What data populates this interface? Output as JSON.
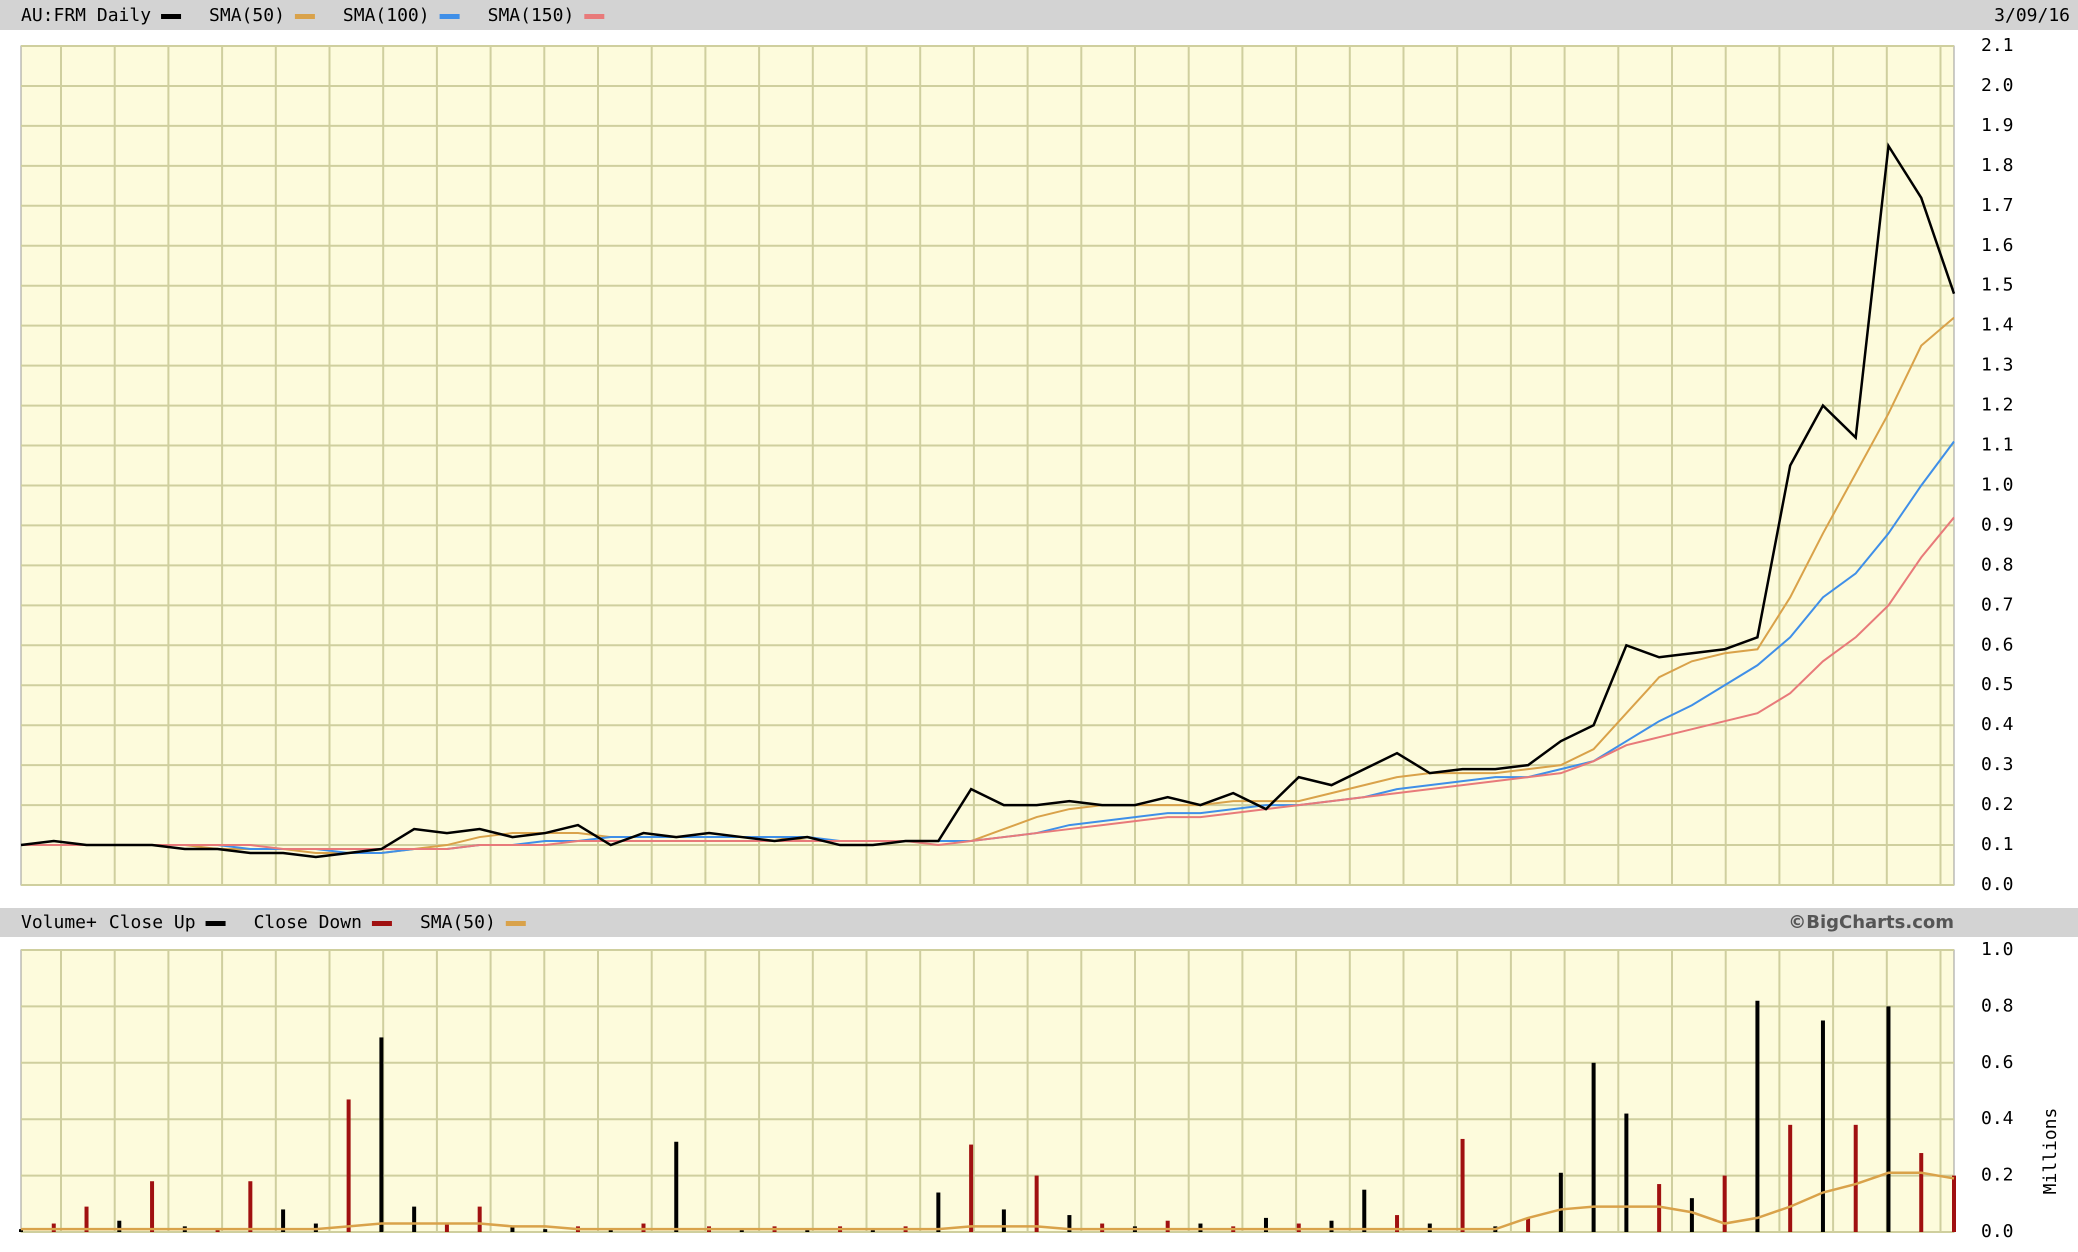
{
  "chart_data": [
    {
      "type": "line",
      "date": "3/09/16",
      "ylim": [
        0,
        2.1
      ],
      "yticks": [
        {
          "value": 0,
          "label": "0.0"
        },
        0.1,
        0.2,
        0.3,
        0.4,
        0.5,
        0.6,
        0.7,
        0.8,
        0.9,
        {
          "value": 1,
          "label": "1.0"
        },
        1.1,
        1.2,
        1.3,
        1.4,
        1.5,
        1.6,
        1.7,
        1.8,
        1.9,
        {
          "value": 2,
          "label": "2.0"
        },
        2.1
      ],
      "grid": true,
      "series": [
        {
          "name": "AU:FRM Daily",
          "color": "#000000",
          "values": [
            0.1,
            0.11,
            0.1,
            0.1,
            0.1,
            0.09,
            0.09,
            0.08,
            0.08,
            0.07,
            0.08,
            0.09,
            0.14,
            0.13,
            0.14,
            0.12,
            0.13,
            0.15,
            0.1,
            0.13,
            0.12,
            0.13,
            0.12,
            0.11,
            0.12,
            0.1,
            0.1,
            0.11,
            0.11,
            0.24,
            0.2,
            0.2,
            0.21,
            0.2,
            0.2,
            0.22,
            0.2,
            0.23,
            0.19,
            0.27,
            0.25,
            0.29,
            0.33,
            0.28,
            0.29,
            0.29,
            0.3,
            0.36,
            0.4,
            0.6,
            0.57,
            0.58,
            0.59,
            0.62,
            1.05,
            1.2,
            1.12,
            1.85,
            1.72,
            1.48
          ]
        },
        {
          "name": "SMA(50)",
          "color": "#d9a24a",
          "values": [
            0.1,
            0.1,
            0.1,
            0.1,
            0.1,
            0.1,
            0.09,
            0.09,
            0.09,
            0.08,
            0.08,
            0.08,
            0.09,
            0.1,
            0.12,
            0.13,
            0.13,
            0.13,
            0.12,
            0.12,
            0.12,
            0.12,
            0.12,
            0.12,
            0.11,
            0.11,
            0.11,
            0.11,
            0.11,
            0.11,
            0.14,
            0.17,
            0.19,
            0.2,
            0.2,
            0.2,
            0.2,
            0.21,
            0.21,
            0.21,
            0.23,
            0.25,
            0.27,
            0.28,
            0.28,
            0.28,
            0.29,
            0.3,
            0.34,
            0.43,
            0.52,
            0.56,
            0.58,
            0.59,
            0.72,
            0.88,
            1.03,
            1.18,
            1.35,
            1.42
          ]
        },
        {
          "name": "SMA(100)",
          "color": "#3f8fe8",
          "values": [
            0.1,
            0.1,
            0.1,
            0.1,
            0.1,
            0.1,
            0.1,
            0.09,
            0.09,
            0.09,
            0.08,
            0.08,
            0.09,
            0.09,
            0.1,
            0.1,
            0.11,
            0.11,
            0.12,
            0.12,
            0.12,
            0.12,
            0.12,
            0.12,
            0.12,
            0.11,
            0.11,
            0.11,
            0.11,
            0.11,
            0.12,
            0.13,
            0.15,
            0.16,
            0.17,
            0.18,
            0.18,
            0.19,
            0.2,
            0.2,
            0.21,
            0.22,
            0.24,
            0.25,
            0.26,
            0.27,
            0.27,
            0.29,
            0.31,
            0.36,
            0.41,
            0.45,
            0.5,
            0.55,
            0.62,
            0.72,
            0.78,
            0.88,
            1.0,
            1.11
          ]
        },
        {
          "name": "SMA(150)",
          "color": "#e87a7a",
          "values": [
            0.1,
            0.1,
            0.1,
            0.1,
            0.1,
            0.1,
            0.1,
            0.1,
            0.09,
            0.09,
            0.09,
            0.09,
            0.09,
            0.09,
            0.1,
            0.1,
            0.1,
            0.11,
            0.11,
            0.11,
            0.11,
            0.11,
            0.11,
            0.11,
            0.11,
            0.11,
            0.11,
            0.11,
            0.1,
            0.11,
            0.12,
            0.13,
            0.14,
            0.15,
            0.16,
            0.17,
            0.17,
            0.18,
            0.19,
            0.2,
            0.21,
            0.22,
            0.23,
            0.24,
            0.25,
            0.26,
            0.27,
            0.28,
            0.31,
            0.35,
            0.37,
            0.39,
            0.41,
            0.43,
            0.48,
            0.56,
            0.62,
            0.7,
            0.82,
            0.92
          ]
        }
      ]
    },
    {
      "type": "bar",
      "title": "Volume+",
      "source": "©BigCharts.com",
      "y_label": "Millions",
      "ylim": [
        0,
        1
      ],
      "yticks": [
        {
          "value": 0,
          "label": "0.0"
        },
        0.2,
        0.4,
        0.6,
        0.8,
        {
          "value": 1,
          "label": "1.0"
        }
      ],
      "grid": true,
      "series": [
        {
          "name": "Close Up",
          "color": "#000000",
          "values": [
            0.01,
            null,
            null,
            0.04,
            null,
            0.02,
            null,
            null,
            0.08,
            0.03,
            null,
            0.69,
            0.09,
            null,
            null,
            0.02,
            0.01,
            null,
            0.01,
            null,
            0.32,
            null,
            0.01,
            null,
            0.01,
            null,
            0.01,
            null,
            0.14,
            null,
            0.08,
            null,
            0.06,
            null,
            0.02,
            null,
            0.03,
            null,
            0.05,
            null,
            0.04,
            0.15,
            null,
            0.03,
            null,
            0.02,
            null,
            0.21,
            0.6,
            0.42,
            null,
            0.12,
            null,
            0.82,
            null,
            0.75,
            null,
            0.8,
            null,
            null
          ]
        },
        {
          "name": "Close Down",
          "color": "#a01010",
          "values": [
            null,
            0.03,
            0.09,
            null,
            0.18,
            null,
            0.01,
            0.18,
            null,
            null,
            0.47,
            null,
            null,
            0.03,
            0.09,
            null,
            null,
            0.02,
            null,
            0.03,
            null,
            0.02,
            null,
            0.02,
            null,
            0.02,
            null,
            0.02,
            null,
            0.31,
            null,
            0.2,
            null,
            0.03,
            null,
            0.04,
            null,
            0.02,
            null,
            0.03,
            null,
            null,
            0.06,
            null,
            0.33,
            null,
            0.05,
            null,
            null,
            null,
            0.17,
            null,
            0.2,
            null,
            0.38,
            null,
            0.38,
            null,
            0.28,
            0.2
          ]
        },
        {
          "name": "SMA(50)",
          "type": "line",
          "color": "#d9a24a",
          "values": [
            0.01,
            0.01,
            0.01,
            0.01,
            0.01,
            0.01,
            0.01,
            0.01,
            0.01,
            0.01,
            0.02,
            0.03,
            0.03,
            0.03,
            0.03,
            0.02,
            0.02,
            0.01,
            0.01,
            0.01,
            0.01,
            0.01,
            0.01,
            0.01,
            0.01,
            0.01,
            0.01,
            0.01,
            0.01,
            0.02,
            0.02,
            0.02,
            0.01,
            0.01,
            0.01,
            0.01,
            0.01,
            0.01,
            0.01,
            0.01,
            0.01,
            0.01,
            0.01,
            0.01,
            0.01,
            0.01,
            0.05,
            0.08,
            0.09,
            0.09,
            0.09,
            0.07,
            0.03,
            0.05,
            0.09,
            0.14,
            0.17,
            0.21,
            0.21,
            0.19
          ]
        }
      ]
    }
  ]
}
